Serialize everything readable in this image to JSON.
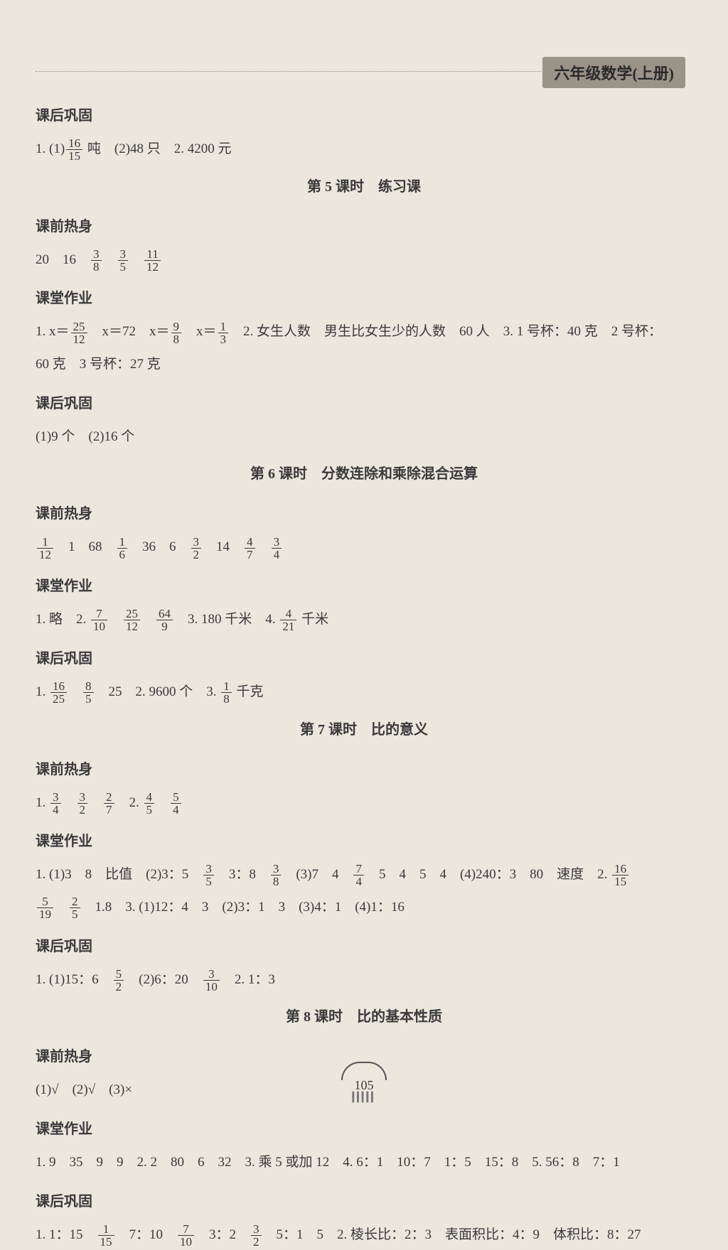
{
  "header": "六年级数学(上册)",
  "pageNumber": "105",
  "sections": [
    {
      "type": "head",
      "text": "课后巩固"
    },
    {
      "type": "line",
      "parts": [
        "1. (1)",
        {
          "f": [
            16,
            15
          ]
        },
        " 吨　(2)48 只　2. 4200 元"
      ]
    },
    {
      "type": "title",
      "text": "第 5 课时　练习课"
    },
    {
      "type": "head",
      "text": "课前热身"
    },
    {
      "type": "line",
      "parts": [
        "20　16　",
        {
          "f": [
            3,
            8
          ]
        },
        "　",
        {
          "f": [
            3,
            5
          ]
        },
        "　",
        {
          "f": [
            11,
            12
          ]
        }
      ]
    },
    {
      "type": "head",
      "text": "课堂作业"
    },
    {
      "type": "line",
      "parts": [
        "1. x＝",
        {
          "f": [
            25,
            12
          ]
        },
        "　x＝72　x＝",
        {
          "f": [
            9,
            8
          ]
        },
        "　x＝",
        {
          "f": [
            1,
            3
          ]
        },
        "　2. 女生人数　男生比女生少的人数　60 人　3. 1 号杯：40 克　2 号杯："
      ]
    },
    {
      "type": "line",
      "parts": [
        "60 克　3 号杯：27 克"
      ]
    },
    {
      "type": "head",
      "text": "课后巩固"
    },
    {
      "type": "line",
      "parts": [
        "(1)9 个　(2)16 个"
      ]
    },
    {
      "type": "title",
      "text": "第 6 课时　分数连除和乘除混合运算"
    },
    {
      "type": "head",
      "text": "课前热身"
    },
    {
      "type": "line",
      "parts": [
        {
          "f": [
            1,
            12
          ]
        },
        "　1　68　",
        {
          "f": [
            1,
            6
          ]
        },
        "　36　6　",
        {
          "f": [
            3,
            2
          ]
        },
        "　14　",
        {
          "f": [
            4,
            7
          ]
        },
        "　",
        {
          "f": [
            3,
            4
          ]
        }
      ]
    },
    {
      "type": "head",
      "text": "课堂作业"
    },
    {
      "type": "line",
      "parts": [
        "1. 略　2. ",
        {
          "f": [
            7,
            10
          ]
        },
        "　",
        {
          "f": [
            25,
            12
          ]
        },
        "　",
        {
          "f": [
            64,
            9
          ]
        },
        "　3. 180 千米　4. ",
        {
          "f": [
            4,
            21
          ]
        },
        " 千米"
      ]
    },
    {
      "type": "head",
      "text": "课后巩固"
    },
    {
      "type": "line",
      "parts": [
        "1. ",
        {
          "f": [
            16,
            25
          ]
        },
        "　",
        {
          "f": [
            8,
            5
          ]
        },
        "　25　2. 9600 个　3. ",
        {
          "f": [
            1,
            8
          ]
        },
        " 千克"
      ]
    },
    {
      "type": "title",
      "text": "第 7 课时　比的意义"
    },
    {
      "type": "head",
      "text": "课前热身"
    },
    {
      "type": "line",
      "parts": [
        "1. ",
        {
          "f": [
            3,
            4
          ]
        },
        "　",
        {
          "f": [
            3,
            2
          ]
        },
        "　",
        {
          "f": [
            2,
            7
          ]
        },
        "　2. ",
        {
          "f": [
            4,
            5
          ]
        },
        "　",
        {
          "f": [
            5,
            4
          ]
        }
      ]
    },
    {
      "type": "head",
      "text": "课堂作业"
    },
    {
      "type": "line",
      "parts": [
        "1. (1)3　8　比值　(2)3：5　",
        {
          "f": [
            3,
            5
          ]
        },
        "　3：8　",
        {
          "f": [
            3,
            8
          ]
        },
        "　(3)7　4　",
        {
          "f": [
            7,
            4
          ]
        },
        "　5　4　5　4　(4)240：3　80　速度　2. ",
        {
          "f": [
            16,
            15
          ]
        }
      ]
    },
    {
      "type": "line",
      "parts": [
        {
          "f": [
            5,
            19
          ]
        },
        "　",
        {
          "f": [
            2,
            5
          ]
        },
        "　1.8　3. (1)12：4　3　(2)3：1　3　(3)4：1　(4)1：16"
      ]
    },
    {
      "type": "head",
      "text": "课后巩固"
    },
    {
      "type": "line",
      "parts": [
        "1. (1)15：6　",
        {
          "f": [
            5,
            2
          ]
        },
        "　(2)6：20　",
        {
          "f": [
            3,
            10
          ]
        },
        "　2. 1：3"
      ]
    },
    {
      "type": "title",
      "text": "第 8 课时　比的基本性质"
    },
    {
      "type": "head",
      "text": "课前热身"
    },
    {
      "type": "line",
      "parts": [
        "(1)√　(2)√　(3)×"
      ]
    },
    {
      "type": "head",
      "text": "课堂作业"
    },
    {
      "type": "line",
      "parts": [
        "1. 9　35　9　9　2. 2　80　6　32　3. 乘 5 或加 12　4. 6：1　10：7　1：5　15：8　5. 56：8　7：1"
      ]
    },
    {
      "type": "head",
      "text": "课后巩固"
    },
    {
      "type": "line",
      "parts": [
        "1. 1：15　",
        {
          "f": [
            1,
            15
          ]
        },
        "　7：10　",
        {
          "f": [
            7,
            10
          ]
        },
        "　3：2　",
        {
          "f": [
            3,
            2
          ]
        },
        "　5：1　5　2. 棱长比：2：3　表面积比：4：9　体积比：8：27"
      ]
    }
  ]
}
